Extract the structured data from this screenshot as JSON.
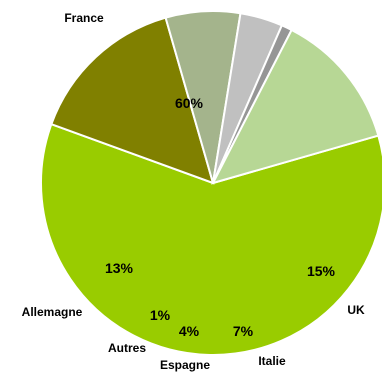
{
  "chart_data": {
    "type": "pie",
    "categories": [
      "France",
      "UK",
      "Italie",
      "Espagne",
      "Autres",
      "Allemagne"
    ],
    "values": [
      60,
      15,
      7,
      4,
      1,
      13
    ],
    "data_labels": [
      "60%",
      "15%",
      "7%",
      "4%",
      "1%",
      "13%"
    ],
    "colors": [
      "#99CC00",
      "#808000",
      "#A4B48C",
      "#C0C0C0",
      "#969696",
      "#B7D795"
    ],
    "start_angle_deg": 74,
    "direction": "clockwise",
    "legend": "none"
  }
}
